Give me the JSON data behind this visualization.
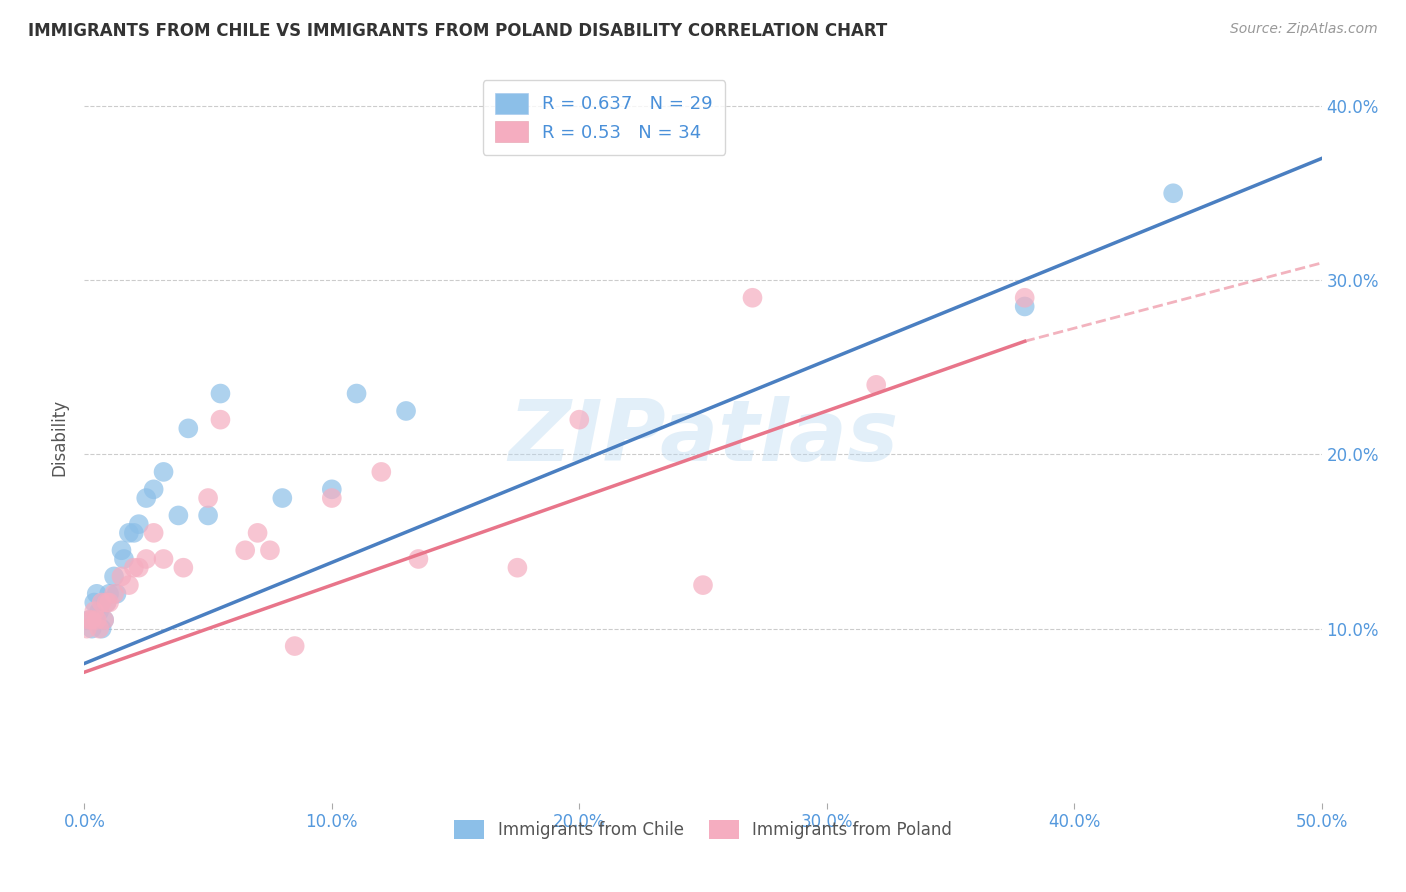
{
  "title": "IMMIGRANTS FROM CHILE VS IMMIGRANTS FROM POLAND DISABILITY CORRELATION CHART",
  "source_text": "Source: ZipAtlas.com",
  "ylabel": "Disability",
  "xlim": [
    0.0,
    0.5
  ],
  "ylim": [
    0.0,
    0.42
  ],
  "xticks": [
    0.0,
    0.1,
    0.2,
    0.3,
    0.4,
    0.5
  ],
  "yticks": [
    0.1,
    0.2,
    0.3,
    0.4
  ],
  "ytick_labels": [
    "10.0%",
    "20.0%",
    "30.0%",
    "40.0%"
  ],
  "xtick_labels": [
    "0.0%",
    "10.0%",
    "20.0%",
    "30.0%",
    "40.0%",
    "50.0%"
  ],
  "chile_color": "#8cbfe8",
  "poland_color": "#f5adc0",
  "chile_line_color": "#4a7fc1",
  "poland_line_color": "#e8758a",
  "R_chile": 0.637,
  "N_chile": 29,
  "R_poland": 0.53,
  "N_poland": 34,
  "legend_label_chile": "Immigrants from Chile",
  "legend_label_poland": "Immigrants from Poland",
  "watermark": "ZIPatlas",
  "chile_x": [
    0.002,
    0.003,
    0.004,
    0.005,
    0.006,
    0.007,
    0.008,
    0.009,
    0.01,
    0.012,
    0.013,
    0.015,
    0.016,
    0.018,
    0.02,
    0.022,
    0.025,
    0.028,
    0.032,
    0.038,
    0.042,
    0.05,
    0.055,
    0.08,
    0.1,
    0.11,
    0.13,
    0.38,
    0.44
  ],
  "chile_y": [
    0.105,
    0.1,
    0.115,
    0.12,
    0.11,
    0.1,
    0.105,
    0.115,
    0.12,
    0.13,
    0.12,
    0.145,
    0.14,
    0.155,
    0.155,
    0.16,
    0.175,
    0.18,
    0.19,
    0.165,
    0.215,
    0.165,
    0.235,
    0.175,
    0.18,
    0.235,
    0.225,
    0.285,
    0.35
  ],
  "poland_x": [
    0.001,
    0.002,
    0.003,
    0.004,
    0.005,
    0.006,
    0.007,
    0.008,
    0.009,
    0.01,
    0.012,
    0.015,
    0.018,
    0.02,
    0.022,
    0.025,
    0.028,
    0.032,
    0.04,
    0.05,
    0.055,
    0.065,
    0.07,
    0.075,
    0.085,
    0.1,
    0.12,
    0.135,
    0.175,
    0.2,
    0.25,
    0.27,
    0.32,
    0.38
  ],
  "poland_y": [
    0.1,
    0.105,
    0.105,
    0.11,
    0.105,
    0.1,
    0.115,
    0.105,
    0.115,
    0.115,
    0.12,
    0.13,
    0.125,
    0.135,
    0.135,
    0.14,
    0.155,
    0.14,
    0.135,
    0.175,
    0.22,
    0.145,
    0.155,
    0.145,
    0.09,
    0.175,
    0.19,
    0.14,
    0.135,
    0.22,
    0.125,
    0.29,
    0.24,
    0.29
  ],
  "background_color": "#ffffff",
  "grid_color": "#cccccc",
  "chile_line_start_x": 0.0,
  "chile_line_end_x": 0.5,
  "chile_line_start_y": 0.08,
  "chile_line_end_y": 0.37,
  "poland_line_start_x": 0.0,
  "poland_line_solid_end_x": 0.38,
  "poland_line_dashed_end_x": 0.5,
  "poland_line_start_y": 0.075,
  "poland_line_solid_end_y": 0.265,
  "poland_line_dashed_end_y": 0.31
}
